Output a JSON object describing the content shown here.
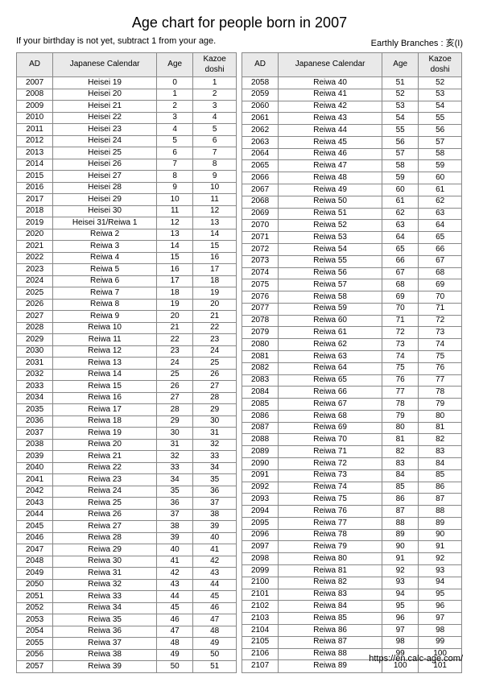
{
  "title": "Age chart for people born in 2007",
  "note": "If your birthday is not yet, subtract 1 from your age.",
  "branches": "Earthly Branches : 亥(I)",
  "footer_url": "https://en.calc-age.com/",
  "headers": {
    "ad": "AD",
    "jp": "Japanese Calendar",
    "age": "Age",
    "kazoe_l1": "Kazoe",
    "kazoe_l2": "doshi"
  },
  "left": [
    [
      "2007",
      "Heisei 19",
      "0",
      "1"
    ],
    [
      "2008",
      "Heisei 20",
      "1",
      "2"
    ],
    [
      "2009",
      "Heisei 21",
      "2",
      "3"
    ],
    [
      "2010",
      "Heisei 22",
      "3",
      "4"
    ],
    [
      "2011",
      "Heisei 23",
      "4",
      "5"
    ],
    [
      "2012",
      "Heisei 24",
      "5",
      "6"
    ],
    [
      "2013",
      "Heisei 25",
      "6",
      "7"
    ],
    [
      "2014",
      "Heisei 26",
      "7",
      "8"
    ],
    [
      "2015",
      "Heisei 27",
      "8",
      "9"
    ],
    [
      "2016",
      "Heisei 28",
      "9",
      "10"
    ],
    [
      "2017",
      "Heisei 29",
      "10",
      "11"
    ],
    [
      "2018",
      "Heisei 30",
      "11",
      "12"
    ],
    [
      "2019",
      "Heisei 31/Reiwa 1",
      "12",
      "13"
    ],
    [
      "2020",
      "Reiwa 2",
      "13",
      "14"
    ],
    [
      "2021",
      "Reiwa 3",
      "14",
      "15"
    ],
    [
      "2022",
      "Reiwa 4",
      "15",
      "16"
    ],
    [
      "2023",
      "Reiwa 5",
      "16",
      "17"
    ],
    [
      "2024",
      "Reiwa 6",
      "17",
      "18"
    ],
    [
      "2025",
      "Reiwa 7",
      "18",
      "19"
    ],
    [
      "2026",
      "Reiwa 8",
      "19",
      "20"
    ],
    [
      "2027",
      "Reiwa 9",
      "20",
      "21"
    ],
    [
      "2028",
      "Reiwa 10",
      "21",
      "22"
    ],
    [
      "2029",
      "Reiwa 11",
      "22",
      "23"
    ],
    [
      "2030",
      "Reiwa 12",
      "23",
      "24"
    ],
    [
      "2031",
      "Reiwa 13",
      "24",
      "25"
    ],
    [
      "2032",
      "Reiwa 14",
      "25",
      "26"
    ],
    [
      "2033",
      "Reiwa 15",
      "26",
      "27"
    ],
    [
      "2034",
      "Reiwa 16",
      "27",
      "28"
    ],
    [
      "2035",
      "Reiwa 17",
      "28",
      "29"
    ],
    [
      "2036",
      "Reiwa 18",
      "29",
      "30"
    ],
    [
      "2037",
      "Reiwa 19",
      "30",
      "31"
    ],
    [
      "2038",
      "Reiwa 20",
      "31",
      "32"
    ],
    [
      "2039",
      "Reiwa 21",
      "32",
      "33"
    ],
    [
      "2040",
      "Reiwa 22",
      "33",
      "34"
    ],
    [
      "2041",
      "Reiwa 23",
      "34",
      "35"
    ],
    [
      "2042",
      "Reiwa 24",
      "35",
      "36"
    ],
    [
      "2043",
      "Reiwa 25",
      "36",
      "37"
    ],
    [
      "2044",
      "Reiwa 26",
      "37",
      "38"
    ],
    [
      "2045",
      "Reiwa 27",
      "38",
      "39"
    ],
    [
      "2046",
      "Reiwa 28",
      "39",
      "40"
    ],
    [
      "2047",
      "Reiwa 29",
      "40",
      "41"
    ],
    [
      "2048",
      "Reiwa 30",
      "41",
      "42"
    ],
    [
      "2049",
      "Reiwa 31",
      "42",
      "43"
    ],
    [
      "2050",
      "Reiwa 32",
      "43",
      "44"
    ],
    [
      "2051",
      "Reiwa 33",
      "44",
      "45"
    ],
    [
      "2052",
      "Reiwa 34",
      "45",
      "46"
    ],
    [
      "2053",
      "Reiwa 35",
      "46",
      "47"
    ],
    [
      "2054",
      "Reiwa 36",
      "47",
      "48"
    ],
    [
      "2055",
      "Reiwa 37",
      "48",
      "49"
    ],
    [
      "2056",
      "Reiwa 38",
      "49",
      "50"
    ],
    [
      "2057",
      "Reiwa 39",
      "50",
      "51"
    ]
  ],
  "right": [
    [
      "2058",
      "Reiwa 40",
      "51",
      "52"
    ],
    [
      "2059",
      "Reiwa 41",
      "52",
      "53"
    ],
    [
      "2060",
      "Reiwa 42",
      "53",
      "54"
    ],
    [
      "2061",
      "Reiwa 43",
      "54",
      "55"
    ],
    [
      "2062",
      "Reiwa 44",
      "55",
      "56"
    ],
    [
      "2063",
      "Reiwa 45",
      "56",
      "57"
    ],
    [
      "2064",
      "Reiwa 46",
      "57",
      "58"
    ],
    [
      "2065",
      "Reiwa 47",
      "58",
      "59"
    ],
    [
      "2066",
      "Reiwa 48",
      "59",
      "60"
    ],
    [
      "2067",
      "Reiwa 49",
      "60",
      "61"
    ],
    [
      "2068",
      "Reiwa 50",
      "61",
      "62"
    ],
    [
      "2069",
      "Reiwa 51",
      "62",
      "63"
    ],
    [
      "2070",
      "Reiwa 52",
      "63",
      "64"
    ],
    [
      "2071",
      "Reiwa 53",
      "64",
      "65"
    ],
    [
      "2072",
      "Reiwa 54",
      "65",
      "66"
    ],
    [
      "2073",
      "Reiwa 55",
      "66",
      "67"
    ],
    [
      "2074",
      "Reiwa 56",
      "67",
      "68"
    ],
    [
      "2075",
      "Reiwa 57",
      "68",
      "69"
    ],
    [
      "2076",
      "Reiwa 58",
      "69",
      "70"
    ],
    [
      "2077",
      "Reiwa 59",
      "70",
      "71"
    ],
    [
      "2078",
      "Reiwa 60",
      "71",
      "72"
    ],
    [
      "2079",
      "Reiwa 61",
      "72",
      "73"
    ],
    [
      "2080",
      "Reiwa 62",
      "73",
      "74"
    ],
    [
      "2081",
      "Reiwa 63",
      "74",
      "75"
    ],
    [
      "2082",
      "Reiwa 64",
      "75",
      "76"
    ],
    [
      "2083",
      "Reiwa 65",
      "76",
      "77"
    ],
    [
      "2084",
      "Reiwa 66",
      "77",
      "78"
    ],
    [
      "2085",
      "Reiwa 67",
      "78",
      "79"
    ],
    [
      "2086",
      "Reiwa 68",
      "79",
      "80"
    ],
    [
      "2087",
      "Reiwa 69",
      "80",
      "81"
    ],
    [
      "2088",
      "Reiwa 70",
      "81",
      "82"
    ],
    [
      "2089",
      "Reiwa 71",
      "82",
      "83"
    ],
    [
      "2090",
      "Reiwa 72",
      "83",
      "84"
    ],
    [
      "2091",
      "Reiwa 73",
      "84",
      "85"
    ],
    [
      "2092",
      "Reiwa 74",
      "85",
      "86"
    ],
    [
      "2093",
      "Reiwa 75",
      "86",
      "87"
    ],
    [
      "2094",
      "Reiwa 76",
      "87",
      "88"
    ],
    [
      "2095",
      "Reiwa 77",
      "88",
      "89"
    ],
    [
      "2096",
      "Reiwa 78",
      "89",
      "90"
    ],
    [
      "2097",
      "Reiwa 79",
      "90",
      "91"
    ],
    [
      "2098",
      "Reiwa 80",
      "91",
      "92"
    ],
    [
      "2099",
      "Reiwa 81",
      "92",
      "93"
    ],
    [
      "2100",
      "Reiwa 82",
      "93",
      "94"
    ],
    [
      "2101",
      "Reiwa 83",
      "94",
      "95"
    ],
    [
      "2102",
      "Reiwa 84",
      "95",
      "96"
    ],
    [
      "2103",
      "Reiwa 85",
      "96",
      "97"
    ],
    [
      "2104",
      "Reiwa 86",
      "97",
      "98"
    ],
    [
      "2105",
      "Reiwa 87",
      "98",
      "99"
    ],
    [
      "2106",
      "Reiwa 88",
      "99",
      "100"
    ],
    [
      "2107",
      "Reiwa 89",
      "100",
      "101"
    ]
  ]
}
